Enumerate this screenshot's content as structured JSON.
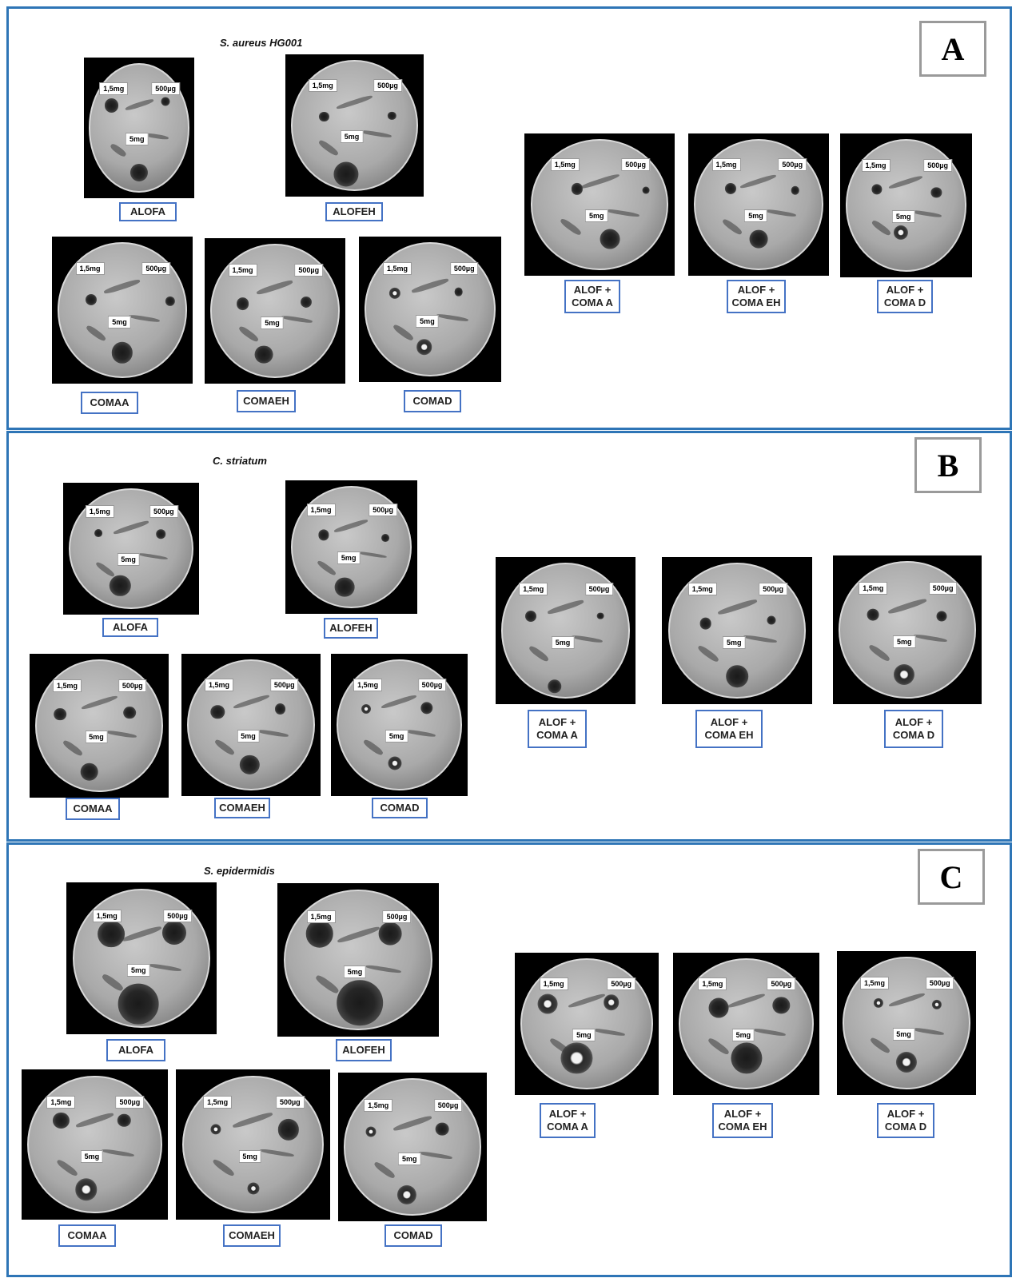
{
  "panels": [
    {
      "id": "A",
      "organism": "S. aureus HG001",
      "letter": "A",
      "dose_labels": {
        "low": "1,5mg",
        "mid": "500µg",
        "high": "5mg"
      },
      "plates": [
        {
          "extract": "ALOFA",
          "caption_lines": [
            "ALOFA"
          ]
        },
        {
          "extract": "ALOFEH",
          "caption_lines": [
            "ALOFEH"
          ]
        },
        {
          "extract": "COMAA",
          "caption_lines": [
            "COMAA"
          ]
        },
        {
          "extract": "COMAEH",
          "caption_lines": [
            "COMAEH"
          ]
        },
        {
          "extract": "COMAD",
          "caption_lines": [
            "COMAD"
          ]
        },
        {
          "extract": "ALOF + COMA A",
          "caption_lines": [
            "ALOF +",
            "COMA A"
          ]
        },
        {
          "extract": "ALOF + COMA EH",
          "caption_lines": [
            "ALOF +",
            "COMA EH"
          ]
        },
        {
          "extract": "ALOF + COMA D",
          "caption_lines": [
            "ALOF +",
            "COMA D"
          ]
        }
      ]
    },
    {
      "id": "B",
      "organism": "C. striatum",
      "letter": "B",
      "dose_labels": {
        "low": "1,5mg",
        "mid": "500µg",
        "high": "5mg"
      },
      "plates": [
        {
          "extract": "ALOFA",
          "caption_lines": [
            "ALOFA"
          ]
        },
        {
          "extract": "ALOFEH",
          "caption_lines": [
            "ALOFEH"
          ]
        },
        {
          "extract": "COMAA",
          "caption_lines": [
            "COMAA"
          ]
        },
        {
          "extract": "COMAEH",
          "caption_lines": [
            "COMAEH"
          ]
        },
        {
          "extract": "COMAD",
          "caption_lines": [
            "COMAD"
          ]
        },
        {
          "extract": "ALOF + COMA A",
          "caption_lines": [
            "ALOF +",
            "COMA A"
          ]
        },
        {
          "extract": "ALOF + COMA EH",
          "caption_lines": [
            "ALOF +",
            "COMA EH"
          ]
        },
        {
          "extract": "ALOF + COMA D",
          "caption_lines": [
            "ALOF +",
            "COMA D"
          ]
        }
      ]
    },
    {
      "id": "C",
      "organism": "S. epidermidis",
      "letter": "C",
      "dose_labels": {
        "low": "1,5mg",
        "mid": "500µg",
        "high": "5mg"
      },
      "plates": [
        {
          "extract": "ALOFA",
          "caption_lines": [
            "ALOFA"
          ]
        },
        {
          "extract": "ALOFEH",
          "caption_lines": [
            "ALOFEH"
          ]
        },
        {
          "extract": "COMAA",
          "caption_lines": [
            "COMAA"
          ]
        },
        {
          "extract": "COMAEH",
          "caption_lines": [
            "COMAEH"
          ]
        },
        {
          "extract": "COMAD",
          "caption_lines": [
            "COMAD"
          ]
        },
        {
          "extract": "ALOF + COMA A",
          "caption_lines": [
            "ALOF +",
            "COMA A"
          ]
        },
        {
          "extract": "ALOF + COMA EH",
          "caption_lines": [
            "ALOF +",
            "COMA EH"
          ]
        },
        {
          "extract": "ALOF + COMA D",
          "caption_lines": [
            "ALOF +",
            "COMA D"
          ]
        }
      ]
    }
  ],
  "colors": {
    "panel_border": "#2e75b6",
    "caption_border": "#4472c4",
    "letter_border": "#9a9a9a"
  }
}
